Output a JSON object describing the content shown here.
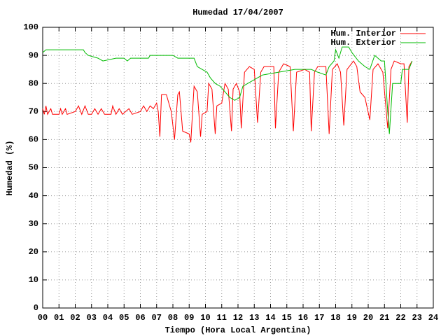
{
  "chart_data": {
    "type": "line",
    "title": "Humedad 17/04/2007",
    "x_label": "Tiempo (Hora Local Argentina)",
    "y_label": "Humedad (%)",
    "xlim": [
      0,
      24
    ],
    "ylim": [
      0,
      100
    ],
    "xticks": [
      {
        "value": 0,
        "label": "00"
      },
      {
        "value": 1,
        "label": "01"
      },
      {
        "value": 2,
        "label": "02"
      },
      {
        "value": 3,
        "label": "03"
      },
      {
        "value": 4,
        "label": "04"
      },
      {
        "value": 5,
        "label": "05"
      },
      {
        "value": 6,
        "label": "06"
      },
      {
        "value": 7,
        "label": "07"
      },
      {
        "value": 8,
        "label": "08"
      },
      {
        "value": 9,
        "label": "09"
      },
      10,
      11,
      12,
      13,
      14,
      15,
      16,
      17,
      18,
      19,
      20,
      21,
      22,
      23,
      24
    ],
    "yticks": [
      0,
      10,
      20,
      30,
      40,
      50,
      60,
      70,
      80,
      90,
      100
    ],
    "grid": true,
    "legend": "top-right",
    "series": [
      {
        "name": "Hum. Interior",
        "color": "#ff0000",
        "x": [
          0,
          0.1,
          0.2,
          0.3,
          0.5,
          0.6,
          1.0,
          1.1,
          1.2,
          1.4,
          1.5,
          2.0,
          2.2,
          2.4,
          2.6,
          2.8,
          3.0,
          3.2,
          3.4,
          3.6,
          3.8,
          4.2,
          4.3,
          4.5,
          4.7,
          4.9,
          5.1,
          5.3,
          5.5,
          6.0,
          6.2,
          6.4,
          6.6,
          6.8,
          7.0,
          7.1,
          7.2,
          7.3,
          7.6,
          7.9,
          8.1,
          8.3,
          8.4,
          8.6,
          9.0,
          9.1,
          9.3,
          9.5,
          9.7,
          9.8,
          10.1,
          10.2,
          10.4,
          10.6,
          10.7,
          11.0,
          11.2,
          11.4,
          11.6,
          11.7,
          11.9,
          12.1,
          12.2,
          12.4,
          12.7,
          13.0,
          13.2,
          13.4,
          13.6,
          14.2,
          14.3,
          14.5,
          14.8,
          15.2,
          15.4,
          15.6,
          16.1,
          16.4,
          16.5,
          16.7,
          16.9,
          17.4,
          17.6,
          17.8,
          18.1,
          18.3,
          18.5,
          18.7,
          19.1,
          19.3,
          19.5,
          19.8,
          20.1,
          20.3,
          20.6,
          20.9,
          21.2,
          21.4,
          21.6,
          22.0,
          22.2,
          22.4,
          22.5,
          22.7
        ],
        "values": [
          71,
          69,
          72,
          69,
          71,
          69,
          69,
          71,
          69,
          71,
          69,
          70,
          72,
          69,
          72,
          69,
          69,
          71,
          69,
          71,
          69,
          69,
          72,
          69,
          71,
          69,
          70,
          71,
          69,
          70,
          72,
          70,
          72,
          71,
          73,
          70,
          61,
          76,
          76,
          70,
          60,
          76,
          77,
          63,
          62,
          59,
          79,
          77,
          61,
          69,
          70,
          80,
          78,
          62,
          72,
          73,
          80,
          78,
          63,
          78,
          80,
          77,
          64,
          84,
          86,
          85,
          66,
          84,
          86,
          86,
          64,
          84,
          87,
          86,
          63,
          84,
          85,
          84,
          63,
          84,
          86,
          86,
          62,
          85,
          87,
          84,
          65,
          85,
          88,
          86,
          77,
          75,
          67,
          85,
          87,
          84,
          64,
          85,
          88,
          87,
          87,
          66,
          86,
          88
        ]
      },
      {
        "name": "Hum. Exterior",
        "color": "#00bb00",
        "x": [
          0,
          0.2,
          1.0,
          2.5,
          2.6,
          2.8,
          3.4,
          3.7,
          4.5,
          5.0,
          5.2,
          5.4,
          6.5,
          6.6,
          8.0,
          8.3,
          9.3,
          9.5,
          9.8,
          10.1,
          10.3,
          10.6,
          10.9,
          11.2,
          11.5,
          11.8,
          12.1,
          12.3,
          12.6,
          13.2,
          13.5,
          14.5,
          15.5,
          16.5,
          16.9,
          17.4,
          17.6,
          17.9,
          18.0,
          18.2,
          18.4,
          18.8,
          19.0,
          19.4,
          19.8,
          20.1,
          20.4,
          20.8,
          21.0,
          21.2,
          21.3,
          21.5,
          22.0,
          22.1,
          22.5,
          22.7
        ],
        "values": [
          91,
          92,
          92,
          92,
          91,
          90,
          89,
          88,
          89,
          89,
          88,
          89,
          89,
          90,
          90,
          89,
          89,
          86,
          85,
          84,
          82,
          80,
          79,
          77,
          75,
          74,
          75,
          79,
          80,
          82,
          83,
          84,
          85,
          85,
          84,
          83,
          86,
          88,
          92,
          89,
          93,
          93,
          91,
          88,
          86,
          85,
          90,
          88,
          88,
          70,
          62,
          80,
          80,
          85,
          85,
          88
        ]
      }
    ]
  }
}
